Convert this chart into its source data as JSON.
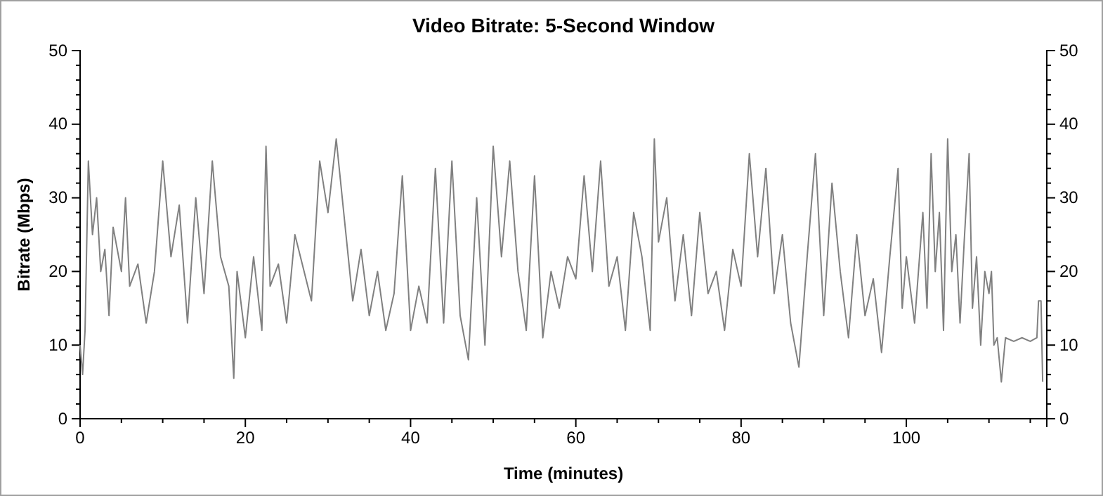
{
  "chart_data": {
    "type": "line",
    "title": "Video Bitrate: 5-Second Window",
    "xlabel": "Time (minutes)",
    "ylabel": "Bitrate (Mbps)",
    "xlim": [
      0,
      117
    ],
    "xticks": [
      0,
      {
        "value": 5,
        "label": null
      },
      {
        "value": 10,
        "label": null
      },
      {
        "value": 15,
        "label": null
      },
      20,
      {
        "value": 25,
        "label": null
      },
      {
        "value": 30,
        "label": null
      },
      {
        "value": 35,
        "label": null
      },
      40,
      {
        "value": 45,
        "label": null
      },
      {
        "value": 50,
        "label": null
      },
      {
        "value": 55,
        "label": null
      },
      60,
      {
        "value": 65,
        "label": null
      },
      {
        "value": 70,
        "label": null
      },
      {
        "value": 75,
        "label": null
      },
      80,
      {
        "value": 85,
        "label": null
      },
      {
        "value": 90,
        "label": null
      },
      {
        "value": 95,
        "label": null
      },
      100,
      {
        "value": 105,
        "label": null
      },
      {
        "value": 110,
        "label": null
      },
      {
        "value": 115,
        "label": null
      }
    ],
    "ylim": [
      0,
      50
    ],
    "yticks": [
      0,
      {
        "value": 2,
        "label": null
      },
      {
        "value": 4,
        "label": null
      },
      {
        "value": 6,
        "label": null
      },
      {
        "value": 8,
        "label": null
      },
      10,
      {
        "value": 12,
        "label": null
      },
      {
        "value": 14,
        "label": null
      },
      {
        "value": 16,
        "label": null
      },
      {
        "value": 18,
        "label": null
      },
      20,
      {
        "value": 22,
        "label": null
      },
      {
        "value": 24,
        "label": null
      },
      {
        "value": 26,
        "label": null
      },
      {
        "value": 28,
        "label": null
      },
      30,
      {
        "value": 32,
        "label": null
      },
      {
        "value": 34,
        "label": null
      },
      {
        "value": 36,
        "label": null
      },
      {
        "value": 38,
        "label": null
      },
      40,
      {
        "value": 42,
        "label": null
      },
      {
        "value": 44,
        "label": null
      },
      {
        "value": 46,
        "label": null
      },
      {
        "value": 48,
        "label": null
      },
      50
    ],
    "y2lim": [
      0,
      50
    ],
    "y2ticks": [
      0,
      {
        "value": 2,
        "label": null
      },
      {
        "value": 4,
        "label": null
      },
      {
        "value": 6,
        "label": null
      },
      {
        "value": 8,
        "label": null
      },
      10,
      {
        "value": 12,
        "label": null
      },
      {
        "value": 14,
        "label": null
      },
      {
        "value": 16,
        "label": null
      },
      {
        "value": 18,
        "label": null
      },
      20,
      {
        "value": 22,
        "label": null
      },
      {
        "value": 24,
        "label": null
      },
      {
        "value": 26,
        "label": null
      },
      {
        "value": 28,
        "label": null
      },
      30,
      {
        "value": 32,
        "label": null
      },
      {
        "value": 34,
        "label": null
      },
      {
        "value": 36,
        "label": null
      },
      {
        "value": 38,
        "label": null
      },
      40,
      {
        "value": 42,
        "label": null
      },
      {
        "value": 44,
        "label": null
      },
      {
        "value": 46,
        "label": null
      },
      {
        "value": 48,
        "label": null
      },
      50
    ],
    "grid": false,
    "series": [
      {
        "color": "#808080",
        "x": [
          0,
          0.3,
          0.6,
          1,
          1.5,
          2,
          2.5,
          3,
          3.5,
          4,
          5,
          5.5,
          6,
          7,
          8,
          9,
          10,
          11,
          12,
          13,
          14,
          15,
          16,
          17,
          18,
          18.6,
          19,
          20,
          21,
          22,
          22.5,
          23,
          24,
          25,
          26,
          28,
          29,
          30,
          31,
          32,
          33,
          34,
          35,
          36,
          37,
          38,
          39,
          40,
          41,
          42,
          43,
          44,
          45,
          46,
          47,
          48,
          49,
          50,
          51,
          52,
          53,
          54,
          55,
          56,
          57,
          58,
          59,
          60,
          61,
          62,
          63,
          64,
          65,
          66,
          67,
          68,
          69,
          69.5,
          70,
          71,
          72,
          73,
          74,
          75,
          76,
          77,
          78,
          79,
          80,
          81,
          82,
          83,
          84,
          85,
          86,
          87,
          88,
          89,
          90,
          91,
          92,
          93,
          94,
          95,
          96,
          97,
          98,
          99,
          99.5,
          100,
          101,
          102,
          102.5,
          103,
          103.5,
          104,
          104.5,
          105,
          105.5,
          106,
          106.5,
          107,
          107.6,
          108,
          108.5,
          109,
          109.5,
          110,
          110.3,
          110.6,
          111,
          111.5,
          112,
          113,
          114,
          115,
          115.8,
          116,
          116.3,
          116.5
        ],
        "values": [
          10,
          6,
          12,
          35,
          25,
          30,
          20,
          23,
          14,
          26,
          20,
          30,
          18,
          21,
          13,
          20,
          35,
          22,
          29,
          13,
          30,
          17,
          35,
          22,
          18,
          5.5,
          20,
          11,
          22,
          12,
          37,
          18,
          21,
          13,
          25,
          16,
          35,
          28,
          38,
          27,
          16,
          23,
          14,
          20,
          12,
          17,
          33,
          12,
          18,
          13,
          34,
          13,
          35,
          14,
          8,
          30,
          10,
          37,
          22,
          35,
          20,
          12,
          33,
          11,
          20,
          15,
          22,
          19,
          33,
          20,
          35,
          18,
          22,
          12,
          28,
          22,
          12,
          38,
          24,
          30,
          16,
          25,
          14,
          28,
          17,
          20,
          12,
          23,
          18,
          36,
          22,
          34,
          17,
          25,
          13,
          7,
          22,
          36,
          14,
          32,
          20,
          11,
          25,
          14,
          19,
          9,
          22,
          34,
          15,
          22,
          13,
          28,
          15,
          36,
          20,
          28,
          12,
          38,
          20,
          25,
          13,
          24,
          36,
          15,
          22,
          10,
          20,
          17,
          20,
          10,
          11,
          5,
          11,
          10.5,
          11,
          10.5,
          11,
          16,
          16,
          5
        ]
      }
    ]
  }
}
